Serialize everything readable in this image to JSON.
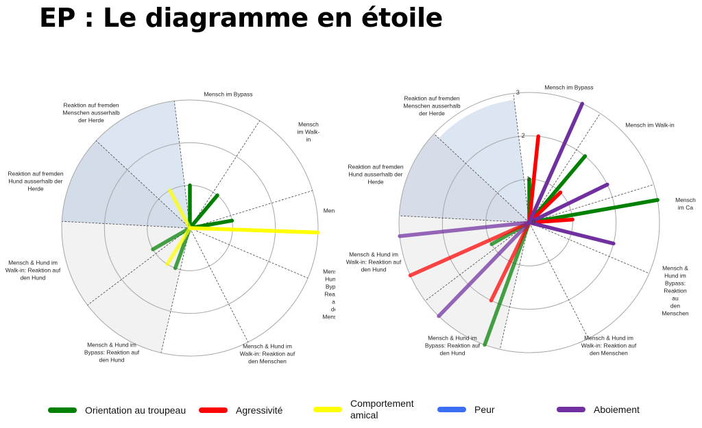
{
  "title": "EP : Le diagramme en étoile",
  "legend": [
    {
      "label": "Orientation au troupeau",
      "color": "#008000"
    },
    {
      "label": "Agressivité",
      "color": "#ff0000"
    },
    {
      "label": "Comportement\namical",
      "color": "#ffff00"
    },
    {
      "label": "Peur",
      "color": "#3b6ef5"
    },
    {
      "label": "Aboiement",
      "color": "#7030a0"
    }
  ],
  "chart_data": [
    {
      "type": "polar-bar",
      "categories": [
        "Mensch im Bypass",
        "Mensch im Walk-in",
        "Men",
        "Mensch & Hund im\nBypass: Reaktion auf\nden Menschen",
        "Mensch & Hund im\nWalk-in: Reaktion auf\nden Menschen",
        "Mensch & Hund im\nBypass: Reaktion auf\nden Hund",
        "Mensch & Hund im\nWalk-in: Reaktion auf\nden Hund",
        "Reaktion auf fremden\nHund ausserhalb der\nHerde",
        "Reaktion auf fremden\nMenschen ausserhalb\nder Herde"
      ],
      "rlim": [
        0,
        3
      ],
      "grid": true,
      "tick_labels": [],
      "series": [
        {
          "name": "Orientation au troupeau",
          "color": "#008000",
          "values": [
            1,
            1,
            1,
            0,
            0,
            1,
            1,
            0,
            0
          ]
        },
        {
          "name": "Agressivité",
          "color": "#ff0000",
          "values": [
            0,
            0,
            0,
            0,
            0,
            0,
            0,
            0,
            0
          ]
        },
        {
          "name": "Comportement amical",
          "color": "#ffff00",
          "values": [
            0,
            0,
            3,
            0,
            0,
            1,
            0,
            0,
            1
          ]
        },
        {
          "name": "Peur",
          "color": "#3b6ef5",
          "values": [
            0,
            0,
            0,
            0,
            0,
            0,
            0,
            0,
            0
          ]
        },
        {
          "name": "Aboiement",
          "color": "#7030a0",
          "values": [
            0,
            0,
            0,
            0,
            0,
            0,
            0,
            0,
            0
          ]
        }
      ],
      "shaded_sectors": [
        {
          "category": 5,
          "color": "#f2f2f2",
          "value": 3
        },
        {
          "category": 6,
          "color": "#f2f2f2",
          "value": 3
        },
        {
          "category": 7,
          "color": "#d3dce9",
          "value": 3
        },
        {
          "category": 8,
          "color": "#dce6f3",
          "value": 3
        }
      ]
    },
    {
      "type": "polar-bar",
      "categories": [
        "Mensch im Bypass",
        "Mensch im Walk-in",
        "Mensch im Ca",
        "Mensch & Hund im\nBypass: Reaktion au\nden Menschen",
        "Mensch & Hund im\nWalk-in: Reaktion auf\nden Menschen",
        "Mensch & Hund im\nBypass: Reaktion auf\nden Hund",
        "Mensch & Hund im\nWalk-in: Reaktion auf\nden Hund",
        "Reaktion auf fremden\nHund ausserhalb der\nHerde",
        "Reaktion auf fremden\nMenschen ausserhalb\nder Herde"
      ],
      "rlim": [
        0,
        3
      ],
      "grid": true,
      "tick_labels": [
        "0",
        "1",
        "2",
        "3"
      ],
      "series": [
        {
          "name": "Orientation au troupeau",
          "color": "#008000",
          "values": [
            1,
            2,
            3,
            0,
            0,
            3,
            1,
            0,
            0
          ]
        },
        {
          "name": "Agressivité",
          "color": "#ff0000",
          "values": [
            2,
            1,
            1,
            0,
            0,
            2,
            3,
            0,
            0
          ]
        },
        {
          "name": "Comportement amical",
          "color": "#ffff00",
          "values": [
            0,
            0,
            0,
            0,
            0,
            0,
            0,
            0,
            0
          ]
        },
        {
          "name": "Peur",
          "color": "#3b6ef5",
          "values": [
            0,
            0,
            0,
            0,
            0,
            0,
            0,
            0,
            0
          ]
        },
        {
          "name": "Aboiement",
          "color": "#7030a0",
          "values": [
            3,
            2,
            2,
            0,
            0,
            3,
            3,
            0,
            0
          ]
        }
      ],
      "shaded_sectors": [
        {
          "category": 5,
          "color": "#f2f2f2",
          "value": 3
        },
        {
          "category": 6,
          "color": "#f2f2f2",
          "value": 3
        },
        {
          "category": 7,
          "color": "#d6dde8",
          "value": 3
        },
        {
          "category": 8,
          "color": "#dce6f3",
          "value": 2.85
        }
      ]
    }
  ]
}
